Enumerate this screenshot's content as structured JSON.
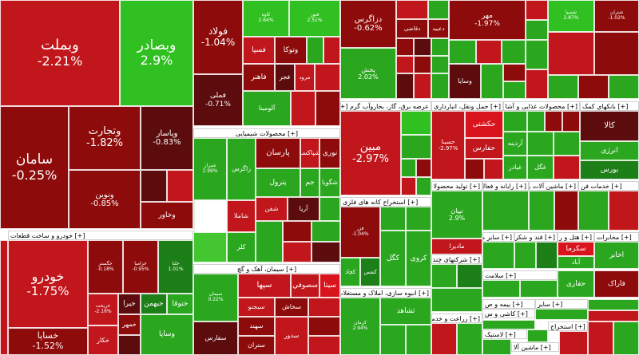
{
  "colors": {
    "deep_red": "#8e0b0b",
    "red": "#c1161b",
    "bright_red": "#d9141c",
    "dark_maroon": "#5c0c0c",
    "green": "#2aa71f",
    "bright_green": "#31c021",
    "light_green": "#43c62f",
    "dark_green": "#1d7f17"
  },
  "sector_headers": {
    "automotive": "[+] خودرو و ساخت قطعات",
    "chemical": "[+] محصولات شیمیایی",
    "cement": "[+] سیمان، آهک و گچ",
    "utilities": "عرضه برق، گاز، بخاروآب گرم [+]",
    "transport": "[+] حمل ونقل، انبارداری و ار",
    "food": "[+] محصولات غذایی و آشا",
    "banks": "[+] بانکهاي کمک",
    "refining": "[+] استخراج کانه های فلزی",
    "construction": "[+] انبوه سازی، املاک و مستغلات",
    "medical": "[+] تولید محصولا",
    "multi": "[+] ماشین آلات و",
    "cement2": "[+] رایانه و فعالیت",
    "services": "[+] خدمات فن",
    "misc1": "[+] سایر مع",
    "misc2": "[+] قند و شکر",
    "misc3": "[+] هتل و ر",
    "misc4": "[+] مخابرات",
    "misc5": "[+] شرکتهای چند ر",
    "misc6": "[+] سلامت",
    "misc7": "[+] بیمه و ص",
    "misc8": "[+] کاشی و س",
    "misc9": "[+] ساير",
    "misc10": "[+] زراعت و خدما",
    "misc11": "[+] استخراج",
    "misc12": "[+] لاستیک",
    "misc13": "[+] ماشین آلا"
  },
  "tiles": {
    "vbmellat": {
      "name": "وبملت",
      "pct": "-2.21%"
    },
    "vbsader": {
      "name": "وبصادر",
      "pct": "2.9%"
    },
    "saman": {
      "name": "سامان",
      "pct": "-0.25%"
    },
    "vtejarat": {
      "name": "وتجارت",
      "pct": "-1.82%"
    },
    "vpasar": {
      "name": "وپاسار",
      "pct": "-0.83%"
    },
    "vnovin": {
      "name": "ونوین",
      "pct": "-0.85%"
    },
    "vkhavar": {
      "name": "وخاور",
      "pct": ""
    },
    "foolad": {
      "name": "فولاد",
      "pct": "-1.04%"
    },
    "fameli": {
      "name": "فملی",
      "pct": "-0.71%"
    },
    "fkhoz": {
      "name": "فاهنر",
      "pct": ""
    },
    "almin": {
      "name": "آلومينا",
      "pct": ""
    },
    "ghadir": {
      "name": "فجر",
      "pct": ""
    },
    "marud": {
      "name": "مرود",
      "pct": ""
    },
    "vtoka": {
      "name": "وتوكا",
      "pct": ""
    },
    "fsepa": {
      "name": "فسپا",
      "pct": ""
    },
    "fkhor": {
      "name": "کاوه",
      "pct": "2.64%"
    },
    "fnoor": {
      "name": "فنور",
      "pct": "2.51%"
    },
    "dargas": {
      "name": "دزاگرس",
      "pct": "-0.62%"
    },
    "dabid": {
      "name": "دعبيد",
      "pct": ""
    },
    "dghazi": {
      "name": "دقاضی",
      "pct": ""
    },
    "pakhsh": {
      "name": "پخش",
      "pct": "2.02%"
    },
    "mehr": {
      "name": "مهر",
      "pct": "-1.97%"
    },
    "vsapa": {
      "name": "وسایا",
      "pct": ""
    },
    "shespa": {
      "name": "شسپا",
      "pct": "2.87%"
    },
    "shetran": {
      "name": "شتران",
      "pct": "-1.02%"
    },
    "mobin": {
      "name": "مبین",
      "pct": "-2.97%"
    },
    "noori": {
      "name": "نوری",
      "pct": ""
    },
    "parsan": {
      "name": "پارسان",
      "pct": ""
    },
    "shpakhsh": {
      "name": "شپاکسا",
      "pct": ""
    },
    "shiraz": {
      "name": "شیراز",
      "pct": "2.99%"
    },
    "zagros": {
      "name": "زاگرس",
      "pct": ""
    },
    "shguya": {
      "name": "شگویا",
      "pct": ""
    },
    "jam": {
      "name": "جم",
      "pct": ""
    },
    "petrol": {
      "name": "پترول",
      "pct": ""
    },
    "shfan": {
      "name": "شفن",
      "pct": ""
    },
    "arya": {
      "name": "آریا",
      "pct": ""
    },
    "shamla": {
      "name": "شاملا",
      "pct": ""
    },
    "kaser": {
      "name": "کلر",
      "pct": ""
    },
    "khodro": {
      "name": "خودرو",
      "pct": "-1.75%"
    },
    "khsapa": {
      "name": "خساپا",
      "pct": "-1.52%"
    },
    "khegostar": {
      "name": "خگستر",
      "pct": "-0.18%"
    },
    "khzamya": {
      "name": "خزامیا",
      "pct": "-0.95%"
    },
    "dalgha": {
      "name": "خلنا",
      "pct": "1.01%"
    },
    "khbahman": {
      "name": "خبهمن",
      "pct": ""
    },
    "khtoka": {
      "name": "ختوقا",
      "pct": ""
    },
    "khmehr": {
      "name": "خمهر",
      "pct": ""
    },
    "khanna": {
      "name": "خریخت",
      "pct": "-2.16%"
    },
    "khtrak": {
      "name": "خیرا",
      "pct": ""
    },
    "khkar": {
      "name": "خکار",
      "pct": ""
    },
    "vsatran": {
      "name": "وساپا",
      "pct": ""
    },
    "siment1": {
      "name": "سیمان",
      "pct": "0.22%"
    },
    "sefars": {
      "name": "سفارس",
      "pct": ""
    },
    "sahand": {
      "name": "سهند",
      "pct": ""
    },
    "sekhash": {
      "name": "سخاش",
      "pct": ""
    },
    "siha": {
      "name": "سپها",
      "pct": ""
    },
    "sedoro": {
      "name": "سدور",
      "pct": ""
    },
    "setran": {
      "name": "ستران",
      "pct": ""
    },
    "sita": {
      "name": "سیتا",
      "pct": ""
    },
    "seshomal": {
      "name": "سصوفي",
      "pct": ""
    },
    "sebagh": {
      "name": "سبجنو",
      "pct": ""
    },
    "kgol": {
      "name": "کگل",
      "pct": ""
    },
    "kchad": {
      "name": "کچاد",
      "pct": ""
    },
    "kroi": {
      "name": "کروی",
      "pct": ""
    },
    "kfeiroz": {
      "name": "فزر",
      "pct": "-1.04%"
    },
    "kmes": {
      "name": "کمس",
      "pct": ""
    },
    "thsaheb": {
      "name": "ثشاهد",
      "pct": ""
    },
    "karmnd": {
      "name": "کرمان",
      "pct": "2.94%"
    },
    "hasina": {
      "name": "حسینا",
      "pct": "-2.97%"
    },
    "hafarse": {
      "name": "حفارس",
      "pct": ""
    },
    "hkashti": {
      "name": "حکشتی",
      "pct": ""
    },
    "ghardineh": {
      "name": "آردینه",
      "pct": ""
    },
    "ghibadr": {
      "name": "غیادر",
      "pct": ""
    },
    "ghgol": {
      "name": "غگل",
      "pct": ""
    },
    "kala": {
      "name": "کالا",
      "pct": ""
    },
    "anrzi": {
      "name": "انرژی",
      "pct": ""
    },
    "burs": {
      "name": "بورس",
      "pct": ""
    },
    "tibian": {
      "name": "تیپان",
      "pct": "2.9%"
    },
    "madira": {
      "name": "مادیرا",
      "pct": ""
    },
    "akhaber": {
      "name": "اخابر",
      "pct": ""
    },
    "hamrah": {
      "name": "همراه",
      "pct": ""
    },
    "sekarma": {
      "name": "سکرما",
      "pct": ""
    },
    "abad": {
      "name": "آباد",
      "pct": ""
    },
    "hafari": {
      "name": "حفاری",
      "pct": ""
    },
    "farak": {
      "name": "فاراک",
      "pct": ""
    }
  }
}
